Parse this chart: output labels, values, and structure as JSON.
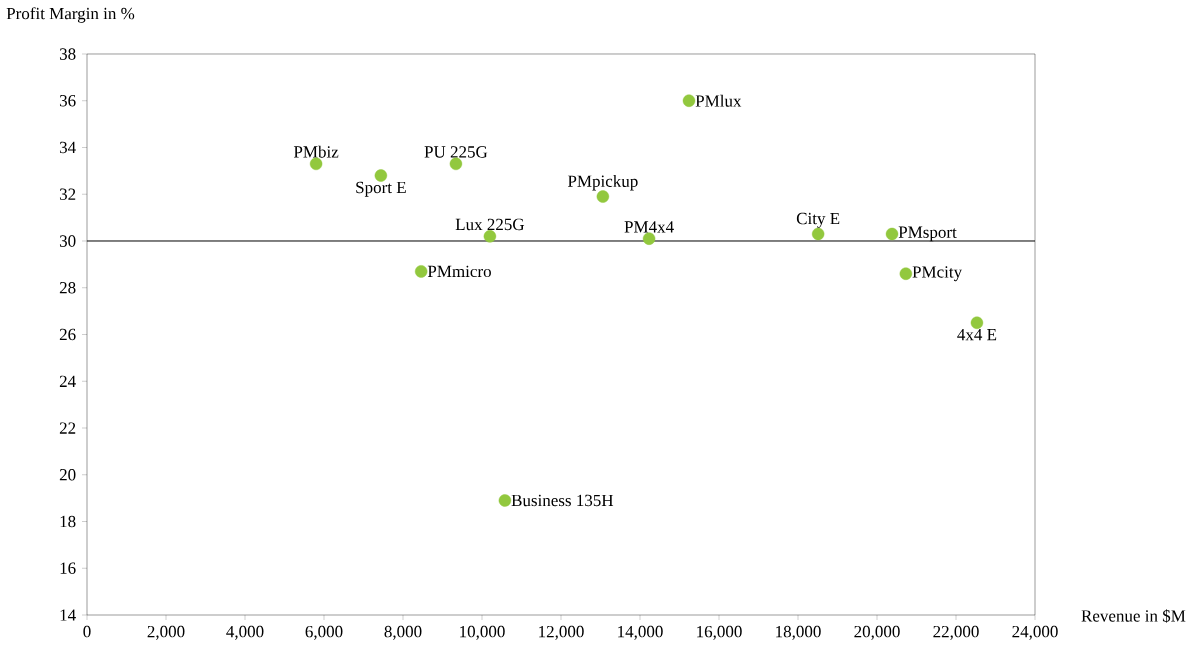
{
  "chart_data": {
    "type": "scatter",
    "xlabel": "Revenue in $M",
    "ylabel": "Profit Margin in %",
    "x": [
      5800,
      7440,
      9340,
      10200,
      8460,
      10580,
      13060,
      14230,
      15240,
      18510,
      20380,
      20730,
      22530
    ],
    "values": [
      33.3,
      32.8,
      33.3,
      30.2,
      28.7,
      18.9,
      31.9,
      30.1,
      36.0,
      30.3,
      30.3,
      28.6,
      26.5
    ],
    "color": "#92c83e",
    "marker": "circle",
    "grid": false,
    "xlim": [
      0,
      24000
    ],
    "ylim": [
      14,
      38
    ],
    "xticks": [
      0,
      {
        "value": 2000,
        "label": "2,000"
      },
      {
        "value": 4000,
        "label": "4,000"
      },
      {
        "value": 6000,
        "label": "6,000"
      },
      {
        "value": 8000,
        "label": "8,000"
      },
      {
        "value": 10000,
        "label": "10,000"
      },
      {
        "value": 12000,
        "label": "12,000"
      },
      {
        "value": 14000,
        "label": "14,000"
      },
      {
        "value": 16000,
        "label": "16,000"
      },
      {
        "value": 18000,
        "label": "18,000"
      },
      {
        "value": 20000,
        "label": "20,000"
      },
      {
        "value": 22000,
        "label": "22,000"
      },
      {
        "value": 24000,
        "label": "24,000"
      }
    ],
    "yticks": [
      14,
      16,
      18,
      20,
      22,
      24,
      26,
      28,
      30,
      32,
      34,
      36,
      38
    ],
    "ref_lines": [
      {
        "axis": "y",
        "value": 30,
        "color": "#000000"
      }
    ],
    "annotations": [
      {
        "text": "PMbiz",
        "x": 5800,
        "y": 33.3
      },
      {
        "text": "Sport E",
        "x": 7440,
        "y": 32.8
      },
      {
        "text": "PU 225G",
        "x": 9340,
        "y": 33.3
      },
      {
        "text": "Lux 225G",
        "x": 10200,
        "y": 30.2
      },
      {
        "text": "PMmicro",
        "x": 8460,
        "y": 28.7
      },
      {
        "text": "Business 135H",
        "x": 10580,
        "y": 18.9
      },
      {
        "text": "PMpickup",
        "x": 13060,
        "y": 31.9
      },
      {
        "text": "PM4x4",
        "x": 14230,
        "y": 30.1
      },
      {
        "text": "PMlux",
        "x": 15240,
        "y": 36.0
      },
      {
        "text": "City E",
        "x": 18510,
        "y": 30.3
      },
      {
        "text": "PMsport",
        "x": 20380,
        "y": 30.3
      },
      {
        "text": "PMcity",
        "x": 20730,
        "y": 28.6
      },
      {
        "text": "4x4 E",
        "x": 22530,
        "y": 26.5
      }
    ]
  }
}
